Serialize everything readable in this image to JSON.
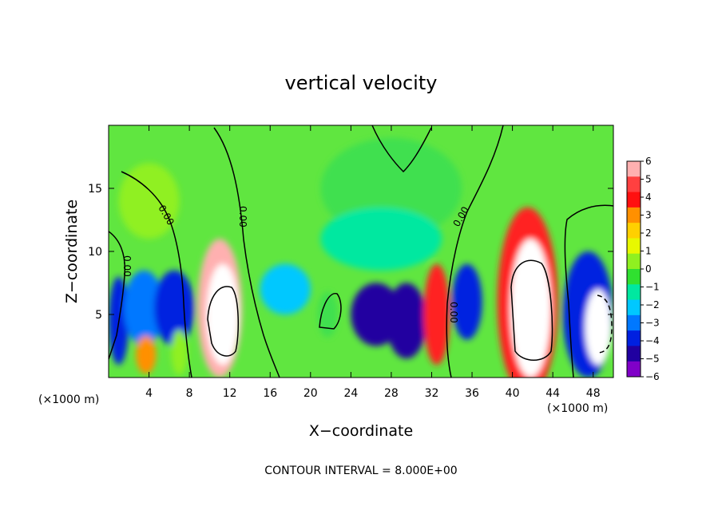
{
  "chart_data": {
    "type": "heatmap",
    "title": "vertical velocity",
    "xlabel": "X−coordinate",
    "ylabel": "Z−coordinate",
    "x_unit": "(×1000 m)",
    "y_unit": "(×1000 m)",
    "xlim": [
      0,
      50
    ],
    "ylim": [
      0,
      20
    ],
    "x_ticks": [
      4,
      8,
      12,
      16,
      20,
      24,
      28,
      32,
      36,
      40,
      44,
      48
    ],
    "y_ticks": [
      5,
      10,
      15
    ],
    "colorbar": {
      "levels": [
        "6",
        "5",
        "4",
        "3",
        "2",
        "1",
        "0",
        "−1",
        "−2",
        "−3",
        "−4",
        "−5",
        "−6"
      ],
      "colors": [
        "#ffb0b0",
        "#ff4040",
        "#ff1010",
        "#ff9000",
        "#ffd000",
        "#e8f800",
        "#90f020",
        "#30e030",
        "#00e8a0",
        "#00c8ff",
        "#0078ff",
        "#0020e0",
        "#2000a0",
        "#8000c8"
      ]
    },
    "contour_labels": [
      "0.00",
      "0.00",
      "0.00",
      "0.00",
      "0.00"
    ],
    "cells": [
      {
        "x": 1.0,
        "z": 4.5,
        "rx": 1.0,
        "rz": 3.5,
        "v": -4
      },
      {
        "x": 3.5,
        "z": 5.5,
        "rx": 2.0,
        "rz": 3.0,
        "v": -3
      },
      {
        "x": 6.5,
        "z": 5.5,
        "rx": 2.0,
        "rz": 3.0,
        "v": -4
      },
      {
        "x": 3.7,
        "z": 1.8,
        "rx": 1.0,
        "rz": 1.5,
        "v": 4
      },
      {
        "x": 7.0,
        "z": 2.0,
        "rx": 0.8,
        "rz": 1.8,
        "v": 1
      },
      {
        "x": 11.0,
        "z": 5.5,
        "rx": 2.2,
        "rz": 5.5,
        "v": 6
      },
      {
        "x": 11.3,
        "z": 5.0,
        "rx": 1.6,
        "rz": 4.0,
        "v": 8
      },
      {
        "x": 17.5,
        "z": 7.0,
        "rx": 2.5,
        "rz": 2.0,
        "v": -2
      },
      {
        "x": 21.7,
        "z": 5.0,
        "rx": 1.0,
        "rz": 1.8,
        "v": 0
      },
      {
        "x": 26.5,
        "z": 5.0,
        "rx": 2.5,
        "rz": 2.5,
        "v": -5
      },
      {
        "x": 29.5,
        "z": 4.5,
        "rx": 2.0,
        "rz": 3.0,
        "v": -5
      },
      {
        "x": 32.5,
        "z": 5.0,
        "rx": 1.3,
        "rz": 4.0,
        "v": 5
      },
      {
        "x": 35.5,
        "z": 6.0,
        "rx": 1.5,
        "rz": 3.0,
        "v": -4
      },
      {
        "x": 41.5,
        "z": 6.0,
        "rx": 3.0,
        "rz": 7.5,
        "v": 5
      },
      {
        "x": 41.8,
        "z": 5.5,
        "rx": 2.0,
        "rz": 5.5,
        "v": 8
      },
      {
        "x": 47.5,
        "z": 5.0,
        "rx": 2.5,
        "rz": 5.0,
        "v": -4
      },
      {
        "x": 48.5,
        "z": 4.0,
        "rx": 1.3,
        "rz": 3.0,
        "v": -7
      },
      {
        "x": 28.0,
        "z": 15.0,
        "rx": 7.0,
        "rz": 4.0,
        "v": 0
      },
      {
        "x": 27.0,
        "z": 11.0,
        "rx": 6.0,
        "rz": 2.5,
        "v": -1
      },
      {
        "x": 4.0,
        "z": 14.0,
        "rx": 3.0,
        "rz": 3.0,
        "v": 1
      }
    ]
  }
}
